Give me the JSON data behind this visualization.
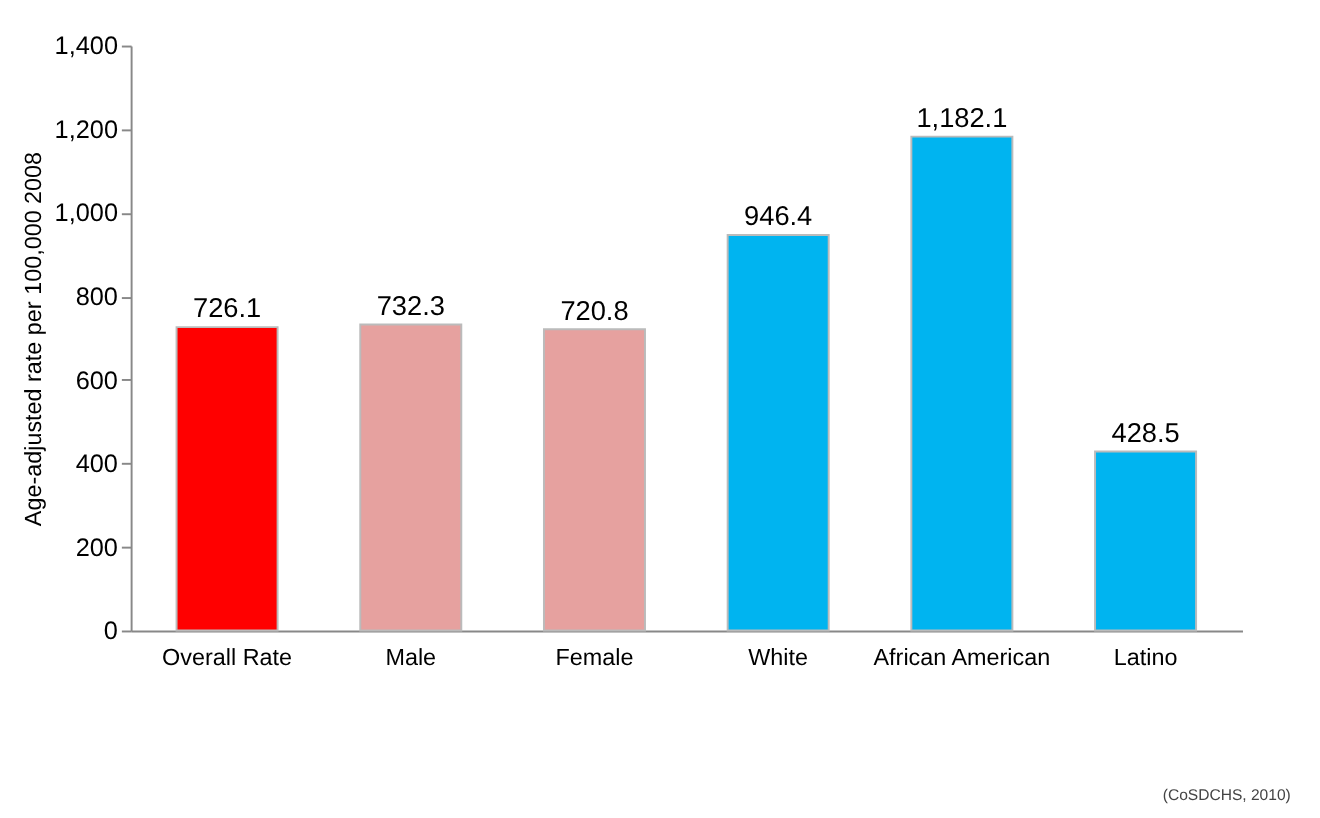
{
  "chart_data": {
    "type": "bar",
    "ylabel": "Age-adjusted rate per 100,000 2008",
    "categories": [
      "Overall Rate",
      "Male",
      "Female",
      "White",
      "African American",
      "Latino"
    ],
    "values": [
      726.1,
      732.3,
      720.8,
      946.4,
      1182.1,
      428.5
    ],
    "value_labels": [
      "726.1",
      "732.3",
      "720.8",
      "946.4",
      "1,182.1",
      "428.5"
    ],
    "colors": [
      "#ff0000",
      "#e6a19f",
      "#e6a19f",
      "#00b4f0",
      "#00b4f0",
      "#00b4f0"
    ],
    "ylim": [
      0,
      1400
    ],
    "yticks": [
      0,
      200,
      400,
      600,
      800,
      {
        "value": 1000,
        "label": "1,000"
      },
      {
        "value": 1200,
        "label": "1,200"
      },
      {
        "value": 1400,
        "label": "1,400"
      }
    ],
    "grid": false,
    "annotations": [
      "(CoSDCHS, 2010)"
    ]
  }
}
